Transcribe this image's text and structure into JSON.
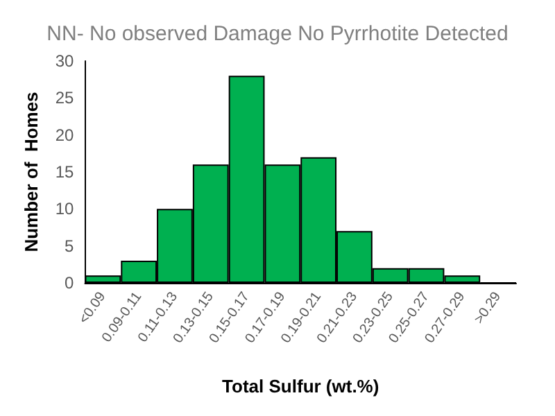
{
  "chart_data": {
    "type": "bar",
    "title": "NN- No observed Damage No Pyrrhotite Detected",
    "xlabel": "Total Sulfur (wt.%)",
    "ylabel": "Number of  Homes",
    "categories": [
      "<0.09",
      "0.09-0.11",
      "0.11-0.13",
      "0.13-0.15",
      "0.15-0.17",
      "0.17-0.19",
      "0.19-0.21",
      "0.21-0.23",
      "0.23-0.25",
      "0.25-0.27",
      "0.27-0.29",
      ">0.29"
    ],
    "values": [
      1,
      3,
      10,
      16,
      28,
      16,
      17,
      7,
      2,
      2,
      1,
      0
    ],
    "color": "#00b050",
    "ylim": [
      0,
      30
    ],
    "yticks": [
      0,
      5,
      10,
      15,
      20,
      25,
      30
    ],
    "grid": false
  }
}
